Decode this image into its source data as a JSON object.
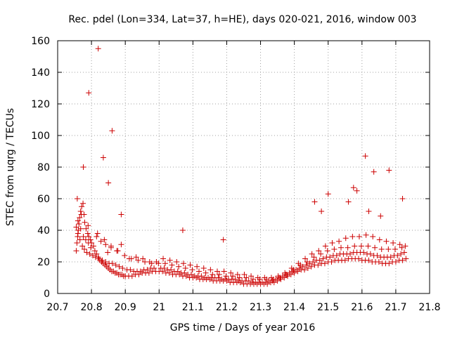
{
  "chart_data": {
    "type": "scatter",
    "title": "Rec. pdel (Lon=334, Lat=37, h=HE), days 020-021, 2016, window 003",
    "xlabel": "GPS time / Days of year 2016",
    "ylabel": "STEC from uqrg / TECUs",
    "xlim": [
      20.7,
      21.8
    ],
    "ylim": [
      0,
      160
    ],
    "xticks": [
      20.7,
      20.8,
      20.9,
      21.0,
      21.1,
      21.2,
      21.3,
      21.4,
      21.5,
      21.6,
      21.7,
      21.8
    ],
    "xtick_labels": [
      "20.7",
      "20.8",
      "20.9",
      "21",
      "21.1",
      "21.2",
      "21.3",
      "21.4",
      "21.5",
      "21.6",
      "21.7",
      "21.8"
    ],
    "yticks": [
      0,
      20,
      40,
      60,
      80,
      100,
      120,
      140,
      160
    ],
    "ytick_labels": [
      "0",
      "20",
      "40",
      "60",
      "80",
      "100",
      "120",
      "140",
      "160"
    ],
    "grid": true,
    "marker": "+",
    "color": "#cc0000",
    "series": [
      {
        "name": "STEC",
        "x": [
          20.755,
          20.757,
          20.759,
          20.761,
          20.763,
          20.765,
          20.768,
          20.771,
          20.775,
          20.778,
          20.78,
          20.784,
          20.789,
          20.792,
          20.797,
          20.8,
          20.806,
          20.81,
          20.815,
          20.82,
          20.825,
          20.83,
          20.835,
          20.84,
          20.845,
          20.85,
          20.855,
          20.86,
          20.865,
          20.87,
          20.875,
          20.88,
          20.885,
          20.89,
          20.895,
          20.9,
          20.91,
          20.92,
          20.93,
          20.94,
          20.95,
          20.96,
          20.97,
          20.98,
          20.99,
          21.0,
          21.01,
          21.02,
          21.03,
          21.04,
          21.05,
          21.06,
          21.07,
          21.08,
          21.09,
          21.1,
          21.11,
          21.12,
          21.13,
          21.14,
          21.15,
          21.16,
          21.17,
          21.18,
          21.19,
          21.2,
          21.21,
          21.22,
          21.23,
          21.24,
          21.25,
          21.26,
          21.27,
          21.28,
          21.29,
          21.3,
          21.31,
          21.32,
          21.33,
          21.34,
          21.35,
          21.36,
          21.37,
          21.38,
          21.39,
          21.4,
          21.41,
          21.42,
          21.43,
          21.44,
          21.45,
          21.46,
          21.47,
          21.48,
          21.49,
          21.5,
          21.51,
          21.52,
          21.53,
          21.54,
          21.55,
          21.56,
          21.57,
          21.58,
          21.59,
          21.6,
          21.61,
          21.62,
          21.63,
          21.64,
          21.65,
          21.66,
          21.67,
          21.68,
          21.69,
          21.7,
          21.71,
          21.72,
          21.73,
          20.755,
          20.76,
          20.766,
          20.773,
          20.779,
          20.786,
          20.795,
          20.804,
          20.812,
          20.822,
          20.832,
          20.842,
          20.852,
          20.862,
          20.872,
          20.882,
          20.892,
          20.905,
          20.915,
          20.925,
          20.935,
          20.945,
          20.955,
          20.965,
          20.975,
          20.985,
          21.005,
          21.015,
          21.025,
          21.035,
          21.045,
          21.055,
          21.065,
          21.075,
          21.085,
          21.095,
          21.105,
          21.115,
          21.125,
          21.135,
          21.145,
          21.155,
          21.165,
          21.175,
          21.185,
          21.195,
          21.205,
          21.215,
          21.225,
          21.235,
          21.245,
          21.255,
          21.265,
          21.275,
          21.285,
          21.295,
          21.305,
          21.315,
          21.325,
          21.335,
          21.345,
          21.355,
          21.365,
          21.375,
          21.385,
          21.395,
          21.405,
          21.415,
          21.425,
          21.435,
          21.445,
          21.455,
          21.465,
          21.475,
          21.485,
          21.495,
          21.505,
          21.515,
          21.525,
          21.535,
          21.545,
          21.555,
          21.565,
          21.575,
          21.585,
          21.595,
          21.605,
          21.615,
          21.625,
          21.635,
          21.645,
          21.655,
          21.665,
          21.675,
          21.685,
          21.695,
          21.705,
          21.715,
          21.725,
          20.758,
          20.77,
          20.79,
          20.818,
          20.838,
          20.858,
          20.878,
          20.898,
          20.918,
          20.938,
          20.958,
          20.978,
          20.998,
          21.018,
          21.038,
          21.058,
          21.078,
          21.098,
          21.118,
          21.138,
          21.158,
          21.178,
          21.198,
          21.218,
          21.238,
          21.258,
          21.278,
          21.298,
          21.318,
          21.338,
          21.358,
          21.378,
          21.398,
          21.418,
          21.438,
          21.458,
          21.478,
          21.498,
          21.518,
          21.538,
          21.558,
          21.578,
          21.598,
          21.618,
          21.638,
          21.658,
          21.678,
          21.698,
          21.718,
          20.76,
          20.768,
          20.776,
          20.783,
          20.791,
          20.798,
          20.815,
          20.828,
          20.842,
          20.848,
          20.858,
          20.875,
          20.888,
          20.912,
          20.932,
          20.952,
          20.972,
          20.992,
          21.012,
          21.032,
          21.052,
          21.072,
          21.092,
          21.112,
          21.132,
          21.152,
          21.172,
          21.192,
          21.212,
          21.232,
          21.252,
          21.272,
          21.292,
          21.312,
          21.332,
          21.352,
          21.372,
          21.392,
          21.412,
          21.432,
          21.452,
          21.472,
          21.492,
          21.512,
          21.532,
          21.552,
          21.572,
          21.592,
          21.612,
          21.632,
          21.652,
          21.672,
          21.692,
          21.712,
          21.728,
          20.776,
          20.792,
          20.82,
          20.835,
          20.85,
          20.861,
          20.888,
          21.07,
          21.19,
          21.46,
          21.48,
          21.5,
          21.56,
          21.575,
          21.585,
          21.61,
          21.62,
          21.635,
          21.655,
          21.68,
          21.72
        ],
        "y": [
          27,
          32,
          36,
          40,
          44,
          48,
          52,
          55,
          57,
          50,
          45,
          41,
          38,
          36,
          34,
          32,
          30,
          27,
          25,
          23,
          21,
          20,
          19,
          18,
          17,
          16,
          15,
          14,
          14,
          13,
          13,
          12,
          12,
          12,
          11,
          11,
          11,
          11,
          12,
          12,
          13,
          13,
          13,
          14,
          14,
          14,
          14,
          13,
          13,
          12,
          12,
          12,
          11,
          11,
          10,
          10,
          10,
          9,
          9,
          9,
          9,
          8,
          8,
          8,
          8,
          8,
          7,
          7,
          7,
          7,
          6,
          6,
          6,
          6,
          6,
          6,
          6,
          6,
          7,
          7,
          8,
          9,
          10,
          11,
          12,
          13,
          14,
          15,
          15,
          16,
          17,
          18,
          18,
          19,
          19,
          20,
          20,
          21,
          21,
          21,
          21,
          22,
          22,
          22,
          22,
          21,
          21,
          21,
          20,
          20,
          20,
          19,
          19,
          19,
          20,
          20,
          21,
          21,
          22,
          42,
          38,
          34,
          30,
          28,
          26,
          25,
          24,
          23,
          22,
          21,
          20,
          19,
          19,
          18,
          17,
          16,
          15,
          15,
          14,
          14,
          14,
          15,
          15,
          16,
          16,
          16,
          16,
          15,
          15,
          14,
          14,
          13,
          13,
          12,
          12,
          11,
          11,
          11,
          10,
          10,
          10,
          10,
          10,
          9,
          9,
          9,
          9,
          9,
          8,
          8,
          8,
          8,
          7,
          7,
          7,
          7,
          7,
          8,
          8,
          9,
          10,
          11,
          12,
          13,
          14,
          15,
          16,
          17,
          18,
          19,
          20,
          21,
          21,
          22,
          23,
          23,
          24,
          24,
          25,
          25,
          25,
          25,
          26,
          26,
          26,
          26,
          25,
          25,
          24,
          24,
          23,
          23,
          23,
          23,
          24,
          24,
          25,
          26,
          60,
          50,
          43,
          38,
          34,
          30,
          27,
          24,
          22,
          21,
          20,
          19,
          19,
          19,
          18,
          17,
          16,
          15,
          14,
          13,
          12,
          12,
          11,
          11,
          10,
          10,
          9,
          9,
          9,
          9,
          10,
          12,
          15,
          18,
          20,
          23,
          25,
          27,
          28,
          29,
          29,
          30,
          30,
          30,
          29,
          28,
          28,
          28,
          29,
          46,
          41,
          36,
          34,
          32,
          29,
          36,
          33,
          31,
          26,
          29,
          27,
          31,
          22,
          23,
          22,
          20,
          20,
          22,
          21,
          20,
          19,
          18,
          17,
          16,
          15,
          14,
          14,
          13,
          12,
          12,
          11,
          10,
          10,
          10,
          11,
          13,
          16,
          19,
          22,
          25,
          27,
          30,
          32,
          33,
          35,
          36,
          36,
          37,
          36,
          34,
          33,
          32,
          31,
          30,
          80,
          127,
          155,
          86,
          70,
          103,
          50,
          40,
          34,
          58,
          52,
          63,
          58,
          67,
          65,
          87,
          52,
          77,
          49,
          78,
          60
        ]
      }
    ]
  }
}
